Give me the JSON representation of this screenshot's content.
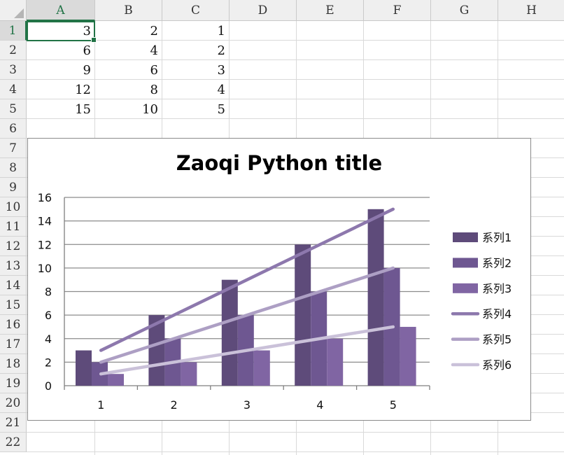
{
  "spreadsheet": {
    "columns": [
      "A",
      "B",
      "C",
      "D",
      "E",
      "F",
      "G",
      "H"
    ],
    "rows": [
      "1",
      "2",
      "3",
      "4",
      "5",
      "6",
      "7",
      "8",
      "9",
      "10",
      "11",
      "12",
      "13",
      "14",
      "15",
      "16",
      "17",
      "18",
      "19",
      "20",
      "21",
      "22"
    ],
    "active_cell": "A1",
    "cells": [
      [
        "3",
        "2",
        "1"
      ],
      [
        "6",
        "4",
        "2"
      ],
      [
        "9",
        "6",
        "3"
      ],
      [
        "12",
        "8",
        "4"
      ],
      [
        "15",
        "10",
        "5"
      ]
    ]
  },
  "chart_data": {
    "type": "bar",
    "title": "Zaoqi Python title",
    "categories": [
      "1",
      "2",
      "3",
      "4",
      "5"
    ],
    "ylim": [
      0,
      16
    ],
    "yticks": [
      "0",
      "2",
      "4",
      "6",
      "8",
      "10",
      "12",
      "14",
      "16"
    ],
    "grid": true,
    "legend_position": "right",
    "series": [
      {
        "name": "系列1",
        "kind": "bar",
        "values": [
          3,
          6,
          9,
          12,
          15
        ],
        "color": "#5e4b7a"
      },
      {
        "name": "系列2",
        "kind": "bar",
        "values": [
          2,
          4,
          6,
          8,
          10
        ],
        "color": "#6e5791"
      },
      {
        "name": "系列3",
        "kind": "bar",
        "values": [
          1,
          2,
          3,
          4,
          5
        ],
        "color": "#8065a3"
      },
      {
        "name": "系列4",
        "kind": "line",
        "values": [
          3,
          6,
          9,
          12,
          15
        ],
        "color": "#8d78ad"
      },
      {
        "name": "系列5",
        "kind": "line",
        "values": [
          2,
          4,
          6,
          8,
          10
        ],
        "color": "#ad9fc4"
      },
      {
        "name": "系列6",
        "kind": "line",
        "values": [
          1,
          2,
          3,
          4,
          5
        ],
        "color": "#cac1d9"
      }
    ]
  }
}
